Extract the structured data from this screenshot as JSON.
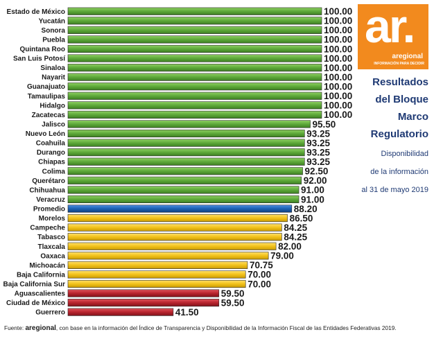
{
  "logo": {
    "mark": "ar.",
    "name": "aregional",
    "tagline": "INFORMACIÓN PARA DECIDIR"
  },
  "side_title": [
    "Resultados",
    "del Bloque",
    "Marco",
    "Regulatorio"
  ],
  "side_subtitle": [
    "Disponibilidad",
    "de la información",
    "al 31 de mayo 2019"
  ],
  "footer": {
    "prefix": "Fuente: ",
    "brand": "aregional",
    "text": ", con base en la información del Índice de Transparencia y Disponibilidad de la Información Fiscal de las Entidades Federativas 2019."
  },
  "colors": {
    "green": "#5ea93a",
    "blue": "#1c62b4",
    "yellow": "#f2c21a",
    "red": "#b8242e",
    "accent": "#f28a1e",
    "title": "#1f3a74"
  },
  "chart_data": {
    "type": "bar",
    "orientation": "horizontal",
    "xlim": [
      0,
      100
    ],
    "categories": [
      "Estado de México",
      "Yucatán",
      "Sonora",
      "Puebla",
      "Quintana Roo",
      "San Luis Potosí",
      "Sinaloa",
      "Nayarit",
      "Guanajuato",
      "Tamaulipas",
      "Hidalgo",
      "Zacatecas",
      "Jalisco",
      "Nuevo León",
      "Coahuila",
      "Durango",
      "Chiapas",
      "Colima",
      "Querétaro",
      "Chihuahua",
      "Veracruz",
      "Promedio",
      "Morelos",
      "Campeche",
      "Tabasco",
      "Tlaxcala",
      "Oaxaca",
      "Michoacán",
      "Baja California",
      "Baja California Sur",
      "Aguascalientes",
      "Ciudad de México",
      "Guerrero"
    ],
    "values": [
      100,
      100,
      100,
      100,
      100,
      100,
      100,
      100,
      100,
      100,
      100,
      100,
      95.5,
      93.25,
      93.25,
      93.25,
      93.25,
      92.5,
      92,
      91,
      91,
      88.2,
      86.5,
      84.25,
      84.25,
      82,
      79,
      70.75,
      70,
      70,
      59.5,
      59.5,
      41.5
    ],
    "value_labels": [
      "100.00",
      "100.00",
      "100.00",
      "100.00",
      "100.00",
      "100.00",
      "100.00",
      "100.00",
      "100.00",
      "100.00",
      "100.00",
      "100.00",
      "95.50",
      "93.25",
      "93.25",
      "93.25",
      "93.25",
      "92.50",
      "92.00",
      "91.00",
      "91.00",
      "88.20",
      "86.50",
      "84.25",
      "84.25",
      "82.00",
      "79.00",
      "70.75",
      "70.00",
      "70.00",
      "59.50",
      "59.50",
      "41.50"
    ],
    "bar_colors": [
      "green",
      "green",
      "green",
      "green",
      "green",
      "green",
      "green",
      "green",
      "green",
      "green",
      "green",
      "green",
      "green",
      "green",
      "green",
      "green",
      "green",
      "green",
      "green",
      "green",
      "green",
      "blue",
      "yellow",
      "yellow",
      "yellow",
      "yellow",
      "yellow",
      "yellow",
      "yellow",
      "yellow",
      "red",
      "red",
      "red"
    ]
  }
}
